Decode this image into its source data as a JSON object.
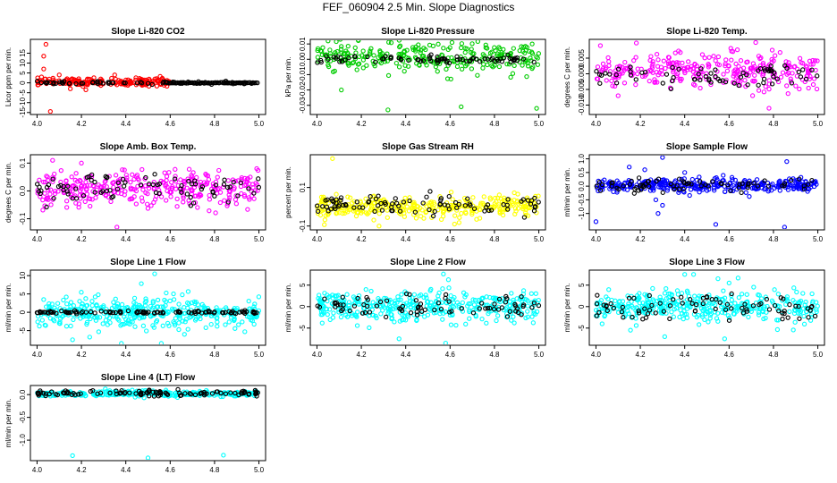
{
  "figure": {
    "title": "FEF_060904  2.5 Min. Slope Diagnostics"
  },
  "colors": {
    "series": {
      "red": "#ff0000",
      "green": "#00cc00",
      "magenta": "#ff00ff",
      "yellow": "#ffff00",
      "blue": "#0000ff",
      "cyan": "#00ffff"
    },
    "overlay": "#000000",
    "axis": "#000000"
  },
  "chart_data": [
    {
      "type": "scatter",
      "title": "Slope Li-820 CO2",
      "ylabel": "Licor ppm per min.",
      "xlim": [
        3.97,
        5.03
      ],
      "ylim": [
        -16,
        22
      ],
      "xticks": [
        4.0,
        4.2,
        4.4,
        4.6,
        4.8,
        5.0
      ],
      "yticks": [
        -15,
        -10,
        -5,
        0,
        5,
        10,
        15
      ],
      "ytick_labels": [
        "-15",
        "-10",
        "-5",
        "0",
        "5",
        "10",
        "15"
      ],
      "color": "red",
      "x_range": [
        4.0,
        4.6
      ],
      "center": 0.5,
      "spread": 1.2,
      "count": 200,
      "outliers": [
        [
          4.04,
          19.5
        ],
        [
          4.03,
          13.5
        ],
        [
          4.03,
          7
        ],
        [
          4.02,
          3
        ],
        [
          4.06,
          -14.5
        ],
        [
          4.1,
          4
        ],
        [
          4.35,
          4
        ],
        [
          4.22,
          -3.5
        ],
        [
          4.15,
          -3
        ]
      ],
      "overlay": {
        "x_range": [
          4.0,
          5.0
        ],
        "center": 0,
        "spread": 0.4,
        "count": 70
      },
      "tail": {
        "x_range": [
          4.6,
          5.0
        ],
        "center": 0,
        "spread": 0.3,
        "count": 60,
        "color": "overlay"
      }
    },
    {
      "type": "scatter",
      "title": "Slope Li-820 Pressure",
      "ylabel": "kPa per min.",
      "xlim": [
        3.97,
        5.03
      ],
      "ylim": [
        -0.036,
        0.013
      ],
      "xticks": [
        4.0,
        4.2,
        4.4,
        4.6,
        4.8,
        5.0
      ],
      "yticks": [
        -0.03,
        -0.02,
        -0.01,
        0.0,
        0.01
      ],
      "ytick_labels": [
        "-0.03",
        "-0.02",
        "-0.01",
        "0.00",
        "0.01"
      ],
      "color": "green",
      "x_range": [
        4.0,
        5.0
      ],
      "center": 0.001,
      "spread": 0.006,
      "count": 280,
      "outliers": [
        [
          4.32,
          -0.033
        ],
        [
          4.65,
          -0.031
        ],
        [
          4.99,
          -0.032
        ],
        [
          4.11,
          -0.02
        ],
        [
          4.05,
          0.012
        ],
        [
          4.97,
          0.01
        ]
      ],
      "overlay": {
        "x_range": [
          4.0,
          5.0
        ],
        "center": 0,
        "spread": 0.0015,
        "count": 80
      }
    },
    {
      "type": "scatter",
      "title": "Slope Li-820 Temp.",
      "ylabel": "degrees C per min.",
      "xlim": [
        3.97,
        5.03
      ],
      "ylim": [
        -0.013,
        0.011
      ],
      "xticks": [
        4.0,
        4.2,
        4.4,
        4.6,
        4.8,
        5.0
      ],
      "yticks": [
        -0.01,
        -0.005,
        0.0,
        0.005
      ],
      "ytick_labels": [
        "-0.010",
        "-0.005",
        "0.000",
        "0.005"
      ],
      "color": "magenta",
      "x_range": [
        4.0,
        5.0
      ],
      "center": 0.001,
      "spread": 0.0035,
      "count": 300,
      "outliers": [
        [
          4.02,
          0.009
        ],
        [
          4.78,
          -0.011
        ],
        [
          4.72,
          0.01
        ],
        [
          4.1,
          -0.007
        ]
      ],
      "overlay": {
        "x_range": [
          4.0,
          5.0
        ],
        "center": -0.001,
        "spread": 0.0025,
        "count": 70
      }
    },
    {
      "type": "scatter",
      "title": "Slope Amb. Box Temp.",
      "ylabel": "degrees C per min.",
      "xlim": [
        3.97,
        5.03
      ],
      "ylim": [
        -0.14,
        0.13
      ],
      "xticks": [
        4.0,
        4.2,
        4.4,
        4.6,
        4.8,
        5.0
      ],
      "yticks": [
        -0.1,
        0.0,
        0.1
      ],
      "ytick_labels": [
        "-0.1",
        "0.0",
        "0.1"
      ],
      "color": "magenta",
      "x_range": [
        4.0,
        5.0
      ],
      "center": 0.005,
      "spread": 0.04,
      "count": 320,
      "outliers": [
        [
          4.07,
          0.11
        ],
        [
          4.36,
          -0.13
        ],
        [
          4.2,
          0.1
        ],
        [
          4.99,
          0.08
        ]
      ],
      "overlay": {
        "x_range": [
          4.0,
          5.0
        ],
        "center": 0.01,
        "spread": 0.03,
        "count": 80
      }
    },
    {
      "type": "scatter",
      "title": "Slope Gas Stream RH",
      "ylabel": "percent per min.",
      "xlim": [
        3.97,
        5.03
      ],
      "ylim": [
        -0.12,
        0.27
      ],
      "xticks": [
        4.0,
        4.2,
        4.4,
        4.6,
        4.8,
        5.0
      ],
      "yticks": [
        -0.1,
        0.1
      ],
      "ytick_labels": [
        "-0.1",
        "0.1"
      ],
      "color": "yellow",
      "x_range": [
        4.0,
        5.0
      ],
      "center": 0.0,
      "spread": 0.035,
      "count": 340,
      "outliers": [
        [
          4.07,
          0.25
        ],
        [
          4.28,
          -0.1
        ],
        [
          4.62,
          -0.09
        ]
      ],
      "overlay": {
        "x_range": [
          4.0,
          5.0
        ],
        "center": 0.01,
        "spread": 0.035,
        "count": 90
      }
    },
    {
      "type": "scatter",
      "title": "Slope Sample Flow",
      "ylabel": "ml/min per min.",
      "xlim": [
        3.97,
        5.03
      ],
      "ylim": [
        -1.6,
        1.15
      ],
      "xticks": [
        4.0,
        4.2,
        4.4,
        4.6,
        4.8,
        5.0
      ],
      "yticks": [
        -1.0,
        -0.5,
        0.0,
        0.5,
        1.0
      ],
      "ytick_labels": [
        "-1.0",
        "-0.5",
        "0.0",
        "0.5",
        "1.0"
      ],
      "color": "blue",
      "x_range": [
        4.0,
        5.0
      ],
      "center": 0.02,
      "spread": 0.15,
      "count": 340,
      "outliers": [
        [
          4.0,
          -1.3
        ],
        [
          4.28,
          -1.0
        ],
        [
          4.3,
          -0.7
        ],
        [
          4.27,
          -0.5
        ],
        [
          4.22,
          0.6
        ],
        [
          4.15,
          0.7
        ],
        [
          4.3,
          1.05
        ],
        [
          4.4,
          0.5
        ],
        [
          4.85,
          -1.5
        ],
        [
          4.86,
          0.9
        ],
        [
          4.54,
          -1.4
        ]
      ],
      "overlay": {
        "x_range": [
          4.0,
          5.0
        ],
        "center": 0.05,
        "spread": 0.15,
        "count": 70
      }
    },
    {
      "type": "scatter",
      "title": "Slope Line 1 Flow",
      "ylabel": "ml/min per min.",
      "xlim": [
        3.97,
        5.03
      ],
      "ylim": [
        -9,
        11.5
      ],
      "xticks": [
        4.0,
        4.2,
        4.4,
        4.6,
        4.8,
        5.0
      ],
      "yticks": [
        -5,
        0,
        5,
        10
      ],
      "ytick_labels": [
        "-5",
        "0",
        "5",
        "10"
      ],
      "color": "cyan",
      "x_range": [
        4.0,
        5.0
      ],
      "center": 0,
      "spread": 2.5,
      "count": 380,
      "outliers": [
        [
          4.53,
          10.5
        ],
        [
          4.47,
          7.8
        ],
        [
          4.38,
          -8.5
        ],
        [
          4.56,
          -8.5
        ],
        [
          4.16,
          -7.5
        ]
      ],
      "overlay": {
        "x_range": [
          4.0,
          5.0
        ],
        "center": 0,
        "spread": 0.25,
        "count": 110
      }
    },
    {
      "type": "scatter",
      "title": "Slope Line 2 Flow",
      "ylabel": "ml/min per min.",
      "xlim": [
        3.97,
        5.03
      ],
      "ylim": [
        -9,
        8.5
      ],
      "xticks": [
        4.0,
        4.2,
        4.4,
        4.6,
        4.8,
        5.0
      ],
      "yticks": [
        -5,
        0,
        5
      ],
      "ytick_labels": [
        "-5",
        "0",
        "5"
      ],
      "color": "cyan",
      "x_range": [
        4.0,
        5.0
      ],
      "center": 0,
      "spread": 2.2,
      "count": 380,
      "outliers": [
        [
          4.57,
          7.6
        ],
        [
          4.58,
          -8.5
        ],
        [
          4.37,
          -7.5
        ]
      ],
      "overlay": {
        "x_range": [
          4.0,
          5.0
        ],
        "center": 0,
        "spread": 1.6,
        "count": 80
      }
    },
    {
      "type": "scatter",
      "title": "Slope Line 3 Flow",
      "ylabel": "ml/min per min.",
      "xlim": [
        3.97,
        5.03
      ],
      "ylim": [
        -9,
        8.5
      ],
      "xticks": [
        4.0,
        4.2,
        4.4,
        4.6,
        4.8,
        5.0
      ],
      "yticks": [
        -5,
        0,
        5
      ],
      "ytick_labels": [
        "-5",
        "0",
        "5"
      ],
      "color": "cyan",
      "x_range": [
        4.0,
        5.0
      ],
      "center": 0,
      "spread": 2.2,
      "count": 380,
      "outliers": [
        [
          4.4,
          7.5
        ],
        [
          4.44,
          7.5
        ],
        [
          4.31,
          -7
        ],
        [
          4.55,
          6.5
        ],
        [
          4.6,
          5.5
        ],
        [
          4.58,
          -7.5
        ]
      ],
      "overlay": {
        "x_range": [
          4.0,
          5.0
        ],
        "center": 0,
        "spread": 2.0,
        "count": 80
      }
    },
    {
      "type": "scatter",
      "title": "Slope Line 4 (LT) Flow",
      "ylabel": "ml/min per min.",
      "xlim": [
        3.97,
        5.03
      ],
      "ylim": [
        -1.45,
        0.2
      ],
      "xticks": [
        4.0,
        4.2,
        4.4,
        4.6,
        4.8,
        5.0
      ],
      "yticks": [
        -1.0,
        -0.5,
        0.0
      ],
      "ytick_labels": [
        "-1.0",
        "-0.5",
        "0.0"
      ],
      "color": "cyan",
      "x_range": [
        4.0,
        5.0
      ],
      "center": 0.02,
      "spread": 0.04,
      "count": 320,
      "outliers": [
        [
          4.16,
          -1.34
        ],
        [
          4.5,
          -1.39
        ],
        [
          4.84,
          -1.33
        ]
      ],
      "overlay": {
        "x_range": [
          4.0,
          5.0
        ],
        "center": 0.03,
        "spread": 0.035,
        "count": 110
      }
    }
  ]
}
